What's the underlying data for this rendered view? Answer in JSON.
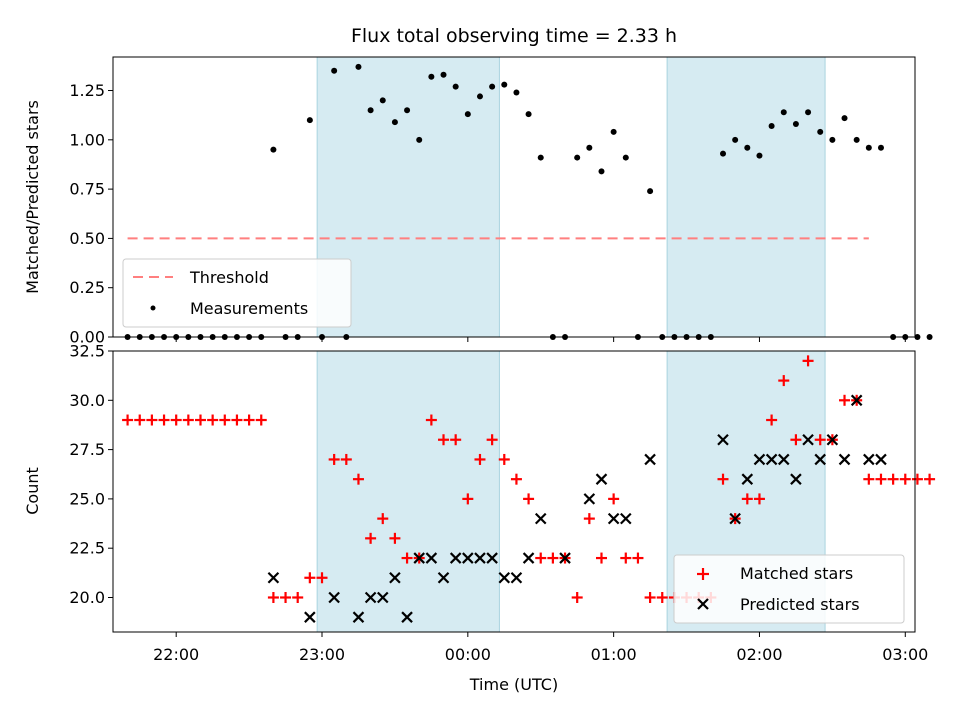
{
  "chart_data": [
    {
      "type": "scatter",
      "title": "Flux total observing time = 2.33 h",
      "xlabel": "",
      "ylabel": "Matched/Predicted stars",
      "ylim": [
        0,
        1.42
      ],
      "yticks": [
        "0.00",
        "0.25",
        "0.50",
        "0.75",
        "1.00",
        "1.25"
      ],
      "xlim": [
        "21:34",
        "03:04"
      ],
      "shaded_intervals": [
        [
          "22:58",
          "00:13"
        ],
        [
          "01:22",
          "02:27"
        ]
      ],
      "threshold": 0.5,
      "threshold_range": [
        "21:40",
        "02:45"
      ],
      "legend": {
        "position": "lower-left",
        "entries": [
          "Threshold",
          "Measurements"
        ]
      },
      "series": [
        {
          "name": "Measurements",
          "points": [
            [
              "21:40",
              0
            ],
            [
              "21:45",
              0
            ],
            [
              "21:50",
              0
            ],
            [
              "21:55",
              0
            ],
            [
              "22:00",
              0
            ],
            [
              "22:05",
              0
            ],
            [
              "22:10",
              0
            ],
            [
              "22:15",
              0
            ],
            [
              "22:20",
              0
            ],
            [
              "22:25",
              0
            ],
            [
              "22:30",
              0
            ],
            [
              "22:35",
              0
            ],
            [
              "22:40",
              0.95
            ],
            [
              "22:45",
              0
            ],
            [
              "22:50",
              0
            ],
            [
              "22:55",
              1.1
            ],
            [
              "23:00",
              0
            ],
            [
              "23:05",
              1.35
            ],
            [
              "23:10",
              0
            ],
            [
              "23:15",
              1.37
            ],
            [
              "23:20",
              1.15
            ],
            [
              "23:25",
              1.2
            ],
            [
              "23:30",
              1.09
            ],
            [
              "23:35",
              1.15
            ],
            [
              "23:40",
              1.0
            ],
            [
              "23:45",
              1.32
            ],
            [
              "23:50",
              1.33
            ],
            [
              "23:55",
              1.27
            ],
            [
              "00:00",
              1.13
            ],
            [
              "00:05",
              1.22
            ],
            [
              "00:10",
              1.27
            ],
            [
              "00:15",
              1.28
            ],
            [
              "00:20",
              1.24
            ],
            [
              "00:25",
              1.13
            ],
            [
              "00:30",
              0.91
            ],
            [
              "00:35",
              0
            ],
            [
              "00:40",
              0
            ],
            [
              "00:45",
              0.91
            ],
            [
              "00:50",
              0.96
            ],
            [
              "00:55",
              0.84
            ],
            [
              "01:00",
              1.04
            ],
            [
              "01:05",
              0.91
            ],
            [
              "01:10",
              0
            ],
            [
              "01:15",
              0.74
            ],
            [
              "01:20",
              0
            ],
            [
              "01:25",
              0
            ],
            [
              "01:30",
              0
            ],
            [
              "01:35",
              0
            ],
            [
              "01:40",
              0
            ],
            [
              "01:45",
              0.93
            ],
            [
              "01:50",
              1.0
            ],
            [
              "01:55",
              0.96
            ],
            [
              "02:00",
              0.92
            ],
            [
              "02:05",
              1.07
            ],
            [
              "02:10",
              1.14
            ],
            [
              "02:15",
              1.08
            ],
            [
              "02:20",
              1.14
            ],
            [
              "02:25",
              1.04
            ],
            [
              "02:30",
              1.0
            ],
            [
              "02:35",
              1.11
            ],
            [
              "02:40",
              1.0
            ],
            [
              "02:45",
              0.96
            ],
            [
              "02:50",
              0.96
            ],
            [
              "02:55",
              0
            ],
            [
              "03:00",
              0
            ],
            [
              "03:05",
              0
            ],
            [
              "03:10",
              0
            ]
          ]
        }
      ]
    },
    {
      "type": "scatter",
      "title": "",
      "xlabel": "Time (UTC)",
      "ylabel": "Count",
      "ylim": [
        18.25,
        32.5
      ],
      "yticks": [
        "20.0",
        "22.5",
        "25.0",
        "27.5",
        "30.0",
        "32.5"
      ],
      "xticks": [
        "22:00",
        "23:00",
        "00:00",
        "01:00",
        "02:00",
        "03:00"
      ],
      "legend": {
        "position": "lower-right",
        "entries": [
          "Matched stars",
          "Predicted stars"
        ]
      },
      "series": [
        {
          "name": "Matched stars",
          "points": [
            [
              "21:40",
              29
            ],
            [
              "21:45",
              29
            ],
            [
              "21:50",
              29
            ],
            [
              "21:55",
              29
            ],
            [
              "22:00",
              29
            ],
            [
              "22:05",
              29
            ],
            [
              "22:10",
              29
            ],
            [
              "22:15",
              29
            ],
            [
              "22:20",
              29
            ],
            [
              "22:25",
              29
            ],
            [
              "22:30",
              29
            ],
            [
              "22:35",
              29
            ],
            [
              "22:40",
              20
            ],
            [
              "22:45",
              20
            ],
            [
              "22:50",
              20
            ],
            [
              "22:55",
              21
            ],
            [
              "23:00",
              21
            ],
            [
              "23:05",
              27
            ],
            [
              "23:10",
              27
            ],
            [
              "23:15",
              26
            ],
            [
              "23:20",
              23
            ],
            [
              "23:25",
              24
            ],
            [
              "23:30",
              23
            ],
            [
              "23:35",
              22
            ],
            [
              "23:40",
              22
            ],
            [
              "23:45",
              29
            ],
            [
              "23:50",
              28
            ],
            [
              "23:55",
              28
            ],
            [
              "00:00",
              25
            ],
            [
              "00:05",
              27
            ],
            [
              "00:10",
              28
            ],
            [
              "00:15",
              27
            ],
            [
              "00:20",
              26
            ],
            [
              "00:25",
              25
            ],
            [
              "00:30",
              22
            ],
            [
              "00:35",
              22
            ],
            [
              "00:40",
              22
            ],
            [
              "00:45",
              20
            ],
            [
              "00:50",
              24
            ],
            [
              "00:55",
              22
            ],
            [
              "01:00",
              25
            ],
            [
              "01:05",
              22
            ],
            [
              "01:10",
              22
            ],
            [
              "01:15",
              20
            ],
            [
              "01:20",
              20
            ],
            [
              "01:25",
              20
            ],
            [
              "01:30",
              20
            ],
            [
              "01:35",
              20
            ],
            [
              "01:40",
              20
            ],
            [
              "01:45",
              26
            ],
            [
              "01:50",
              24
            ],
            [
              "01:55",
              25
            ],
            [
              "02:00",
              25
            ],
            [
              "02:05",
              29
            ],
            [
              "02:10",
              31
            ],
            [
              "02:15",
              28
            ],
            [
              "02:20",
              32
            ],
            [
              "02:25",
              28
            ],
            [
              "02:30",
              28
            ],
            [
              "02:35",
              30
            ],
            [
              "02:40",
              30
            ],
            [
              "02:45",
              26
            ],
            [
              "02:50",
              26
            ],
            [
              "02:55",
              26
            ],
            [
              "03:00",
              26
            ],
            [
              "03:05",
              26
            ],
            [
              "03:10",
              26
            ]
          ]
        },
        {
          "name": "Predicted stars",
          "points": [
            [
              "22:40",
              21
            ],
            [
              "22:55",
              19
            ],
            [
              "23:05",
              20
            ],
            [
              "23:15",
              19
            ],
            [
              "23:20",
              20
            ],
            [
              "23:25",
              20
            ],
            [
              "23:30",
              21
            ],
            [
              "23:35",
              19
            ],
            [
              "23:40",
              22
            ],
            [
              "23:45",
              22
            ],
            [
              "23:50",
              21
            ],
            [
              "23:55",
              22
            ],
            [
              "00:00",
              22
            ],
            [
              "00:05",
              22
            ],
            [
              "00:10",
              22
            ],
            [
              "00:15",
              21
            ],
            [
              "00:20",
              21
            ],
            [
              "00:25",
              22
            ],
            [
              "00:30",
              24
            ],
            [
              "00:40",
              22
            ],
            [
              "00:50",
              25
            ],
            [
              "00:55",
              26
            ],
            [
              "01:00",
              24
            ],
            [
              "01:05",
              24
            ],
            [
              "01:15",
              27
            ],
            [
              "01:45",
              28
            ],
            [
              "01:50",
              24
            ],
            [
              "01:55",
              26
            ],
            [
              "02:00",
              27
            ],
            [
              "02:05",
              27
            ],
            [
              "02:10",
              27
            ],
            [
              "02:15",
              26
            ],
            [
              "02:20",
              28
            ],
            [
              "02:25",
              27
            ],
            [
              "02:30",
              28
            ],
            [
              "02:35",
              27
            ],
            [
              "02:40",
              30
            ],
            [
              "02:45",
              27
            ],
            [
              "02:50",
              27
            ]
          ]
        }
      ]
    }
  ]
}
